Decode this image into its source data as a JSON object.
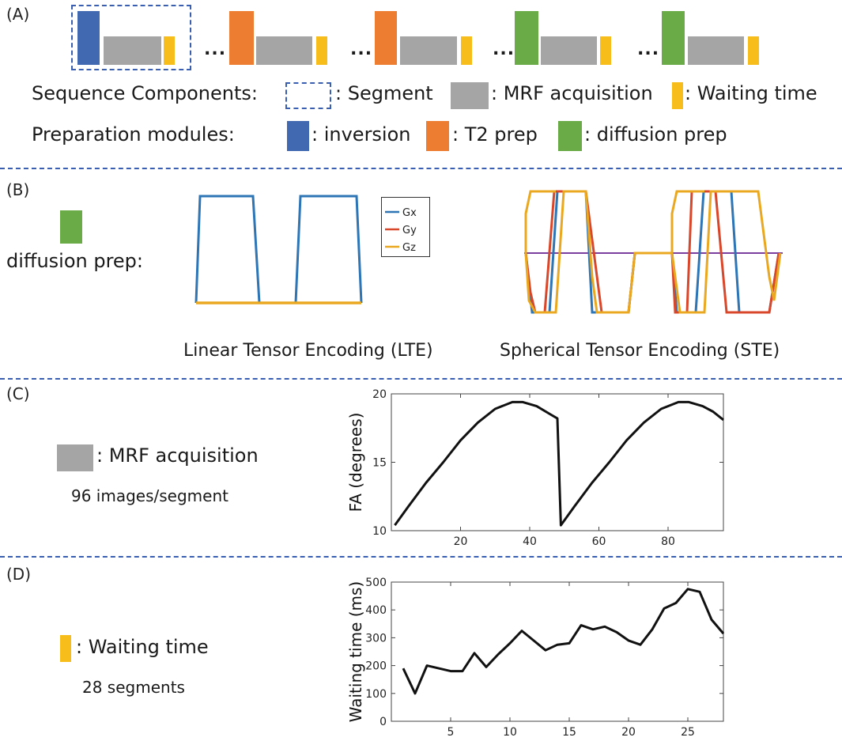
{
  "colors": {
    "inversion": "#4169b2",
    "t2prep": "#ed7d31",
    "diffusion": "#6aaa47",
    "acquisition": "#a5a5a5",
    "waiting": "#f7be1b",
    "divider": "#3a5fb0",
    "gx": "#2e75b6",
    "gy": "#d9472b",
    "gz": "#eaa820",
    "gextra": "#7b3fa0"
  },
  "panelA": {
    "label": "(A)",
    "ellipsis": "...",
    "components_label": "Sequence Components:",
    "segment_label": ": Segment",
    "acquisition_label": ": MRF acquisition",
    "waiting_label": ": Waiting time",
    "modules_label": "Preparation modules:",
    "inversion_label": ": inversion",
    "t2prep_label": ": T2 prep",
    "diffusion_label": ": diffusion prep"
  },
  "panelB": {
    "label": "(B)",
    "diffusion_label": "diffusion prep:",
    "lte_caption": "Linear Tensor Encoding (LTE)",
    "ste_caption": "Spherical Tensor Encoding (STE)",
    "legend": [
      "Gx",
      "Gy",
      "Gz"
    ]
  },
  "panelC": {
    "label": "(C)",
    "acquisition_label": ": MRF acquisition",
    "images_note": "96 images/segment"
  },
  "panelD": {
    "label": "(D)",
    "waiting_label": ": Waiting time",
    "segments_note": "28 segments"
  },
  "chart_data": [
    {
      "type": "line",
      "ylabel": "FA (degrees)",
      "xlabel": "",
      "xlim": [
        0,
        96
      ],
      "ylim": [
        10,
        20
      ],
      "xticks": [
        20,
        40,
        60,
        80
      ],
      "yticks": [
        10,
        15,
        20
      ],
      "series": [
        {
          "x": [
            1,
            5,
            10,
            15,
            20,
            25,
            30,
            35,
            38,
            42,
            46,
            48,
            49,
            53,
            58,
            63,
            68,
            73,
            78,
            83,
            86,
            90,
            93,
            96
          ],
          "y": [
            10.4,
            11.8,
            13.5,
            15.0,
            16.6,
            17.9,
            18.9,
            19.4,
            19.4,
            19.1,
            18.5,
            18.2,
            10.4,
            11.8,
            13.5,
            15.0,
            16.6,
            17.9,
            18.9,
            19.4,
            19.4,
            19.1,
            18.7,
            18.1
          ]
        }
      ]
    },
    {
      "type": "line",
      "ylabel": "Waiting time (ms)",
      "xlabel": "",
      "xlim": [
        0,
        28
      ],
      "ylim": [
        0,
        500
      ],
      "xticks": [
        5,
        10,
        15,
        20,
        25
      ],
      "yticks": [
        0,
        100,
        200,
        300,
        400,
        500
      ],
      "series": [
        {
          "x": [
            1,
            2,
            3,
            4,
            5,
            6,
            7,
            8,
            9,
            10,
            11,
            12,
            13,
            14,
            15,
            16,
            17,
            18,
            19,
            20,
            21,
            22,
            23,
            24,
            25,
            26,
            27,
            28
          ],
          "y": [
            190,
            100,
            200,
            190,
            180,
            180,
            245,
            195,
            240,
            280,
            325,
            290,
            255,
            275,
            280,
            345,
            330,
            340,
            320,
            290,
            275,
            330,
            405,
            425,
            475,
            465,
            365,
            315
          ]
        }
      ]
    }
  ]
}
